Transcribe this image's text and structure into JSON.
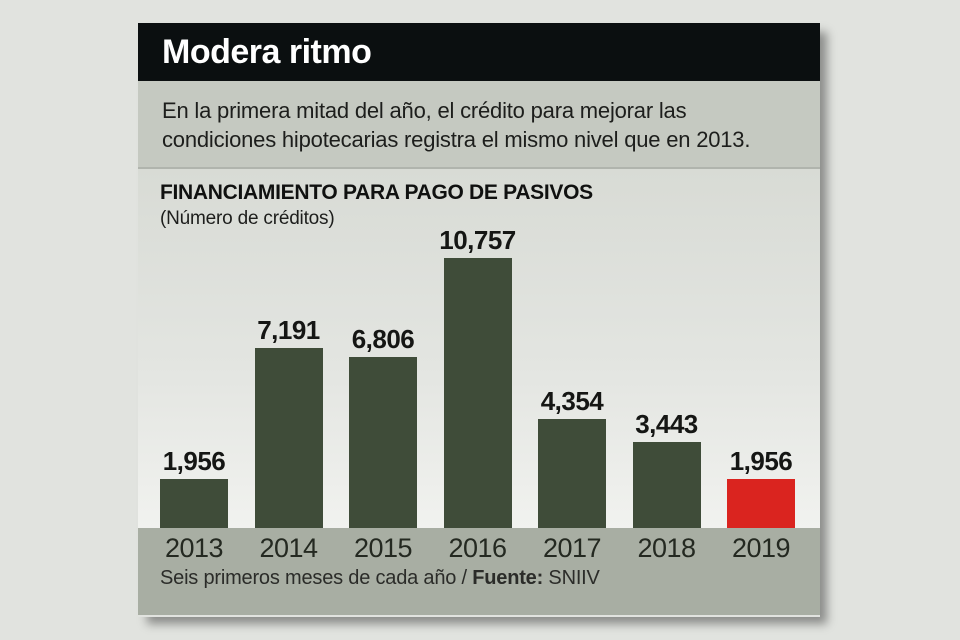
{
  "header": {
    "title": "Modera ritmo"
  },
  "intro": {
    "lines": [
      "En la primera mitad del año, el crédito para mejorar las",
      "condiciones hipotecarias registra el mismo nivel que en 2013."
    ]
  },
  "chart": {
    "title": "FINANCIAMIENTO PARA PAGO DE PASIVOS",
    "unit_label": "(Número de créditos)"
  },
  "footer": {
    "note": "Seis primeros meses de cada año / ",
    "source_label": "Fuente:",
    "source_value": " SNIIV"
  },
  "colors": {
    "bar_green": "#3f4c39",
    "bar_red": "#da241f",
    "header_bg": "#0b0f10",
    "intro_bg": "#c5c9c1",
    "axis_band_bg": "#a8aea3"
  },
  "chart_data": {
    "type": "bar",
    "title": "FINANCIAMIENTO PARA PAGO DE PASIVOS",
    "subtitle": "(Número de créditos)",
    "xlabel": "",
    "ylabel": "Número de créditos",
    "categories": [
      "2013",
      "2014",
      "2015",
      "2016",
      "2017",
      "2018",
      "2019"
    ],
    "values": [
      1956,
      7191,
      6806,
      10757,
      4354,
      3443,
      1956
    ],
    "value_labels": [
      "1,956",
      "7,191",
      "6,806",
      "10,757",
      "4,354",
      "3,443",
      "1,956"
    ],
    "ylim": [
      0,
      10757
    ],
    "grid": false,
    "legend": "none",
    "bar_color": "#3f4c39",
    "highlight_index": 6,
    "highlight_color": "#da241f",
    "annotation": "Seis primeros meses de cada año / Fuente: SNIIV"
  }
}
